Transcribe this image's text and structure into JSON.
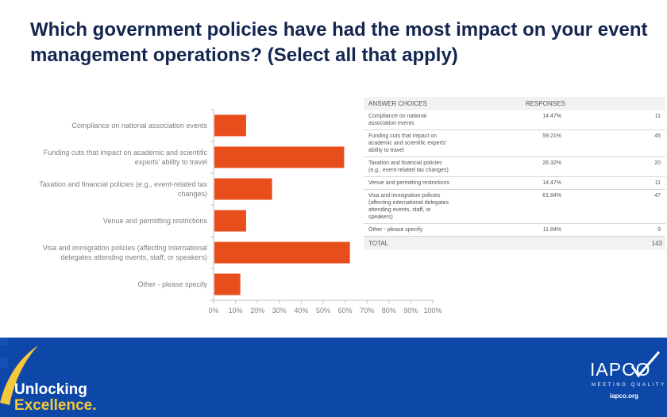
{
  "title": "Which government policies have had the most impact on your event management operations? (Select all that apply)",
  "chart_data": {
    "type": "bar",
    "orientation": "horizontal",
    "categories": [
      "Compliance on national association events",
      "Funding cuts that impact on academic and scientific experts' ability to travel",
      "Taxation and financial policies (e.g., event-related tax changes)",
      "Venue and permitting restrictions",
      "Visa and immigration policies (affecting international delegates attending events, staff, or speakers)",
      "Other - please specify"
    ],
    "category_lines": [
      [
        "Compliance on national association events"
      ],
      [
        "Funding cuts that impact on academic and scientific",
        "experts’ ability to travel"
      ],
      [
        "Taxation and financial policies (e.g., event-related tax",
        "changes)"
      ],
      [
        "Venue and permitting restrictions"
      ],
      [
        "Visa and immigration policies (affecting international",
        "delegates attending events, staff, or speakers)"
      ],
      [
        "Other - please specify"
      ]
    ],
    "values": [
      14.47,
      59.21,
      26.32,
      14.47,
      61.84,
      11.84
    ],
    "xlim": [
      0,
      100
    ],
    "xticks": [
      "0%",
      "10%",
      "20%",
      "30%",
      "40%",
      "50%",
      "60%",
      "70%",
      "80%",
      "90%",
      "100%"
    ],
    "bar_color": "#e84e1b",
    "grid": false
  },
  "table": {
    "headers": [
      "ANSWER CHOICES",
      "RESPONSES"
    ],
    "rows": [
      {
        "lines": [
          "Compliance on national",
          "association events"
        ],
        "pct": "14.47%",
        "count": "11"
      },
      {
        "lines": [
          "Funding cuts that impact on",
          "academic and scientific experts'",
          "ability to travel"
        ],
        "pct": "59.21%",
        "count": "45"
      },
      {
        "lines": [
          "Taxation and financial policies",
          "(e.g., event-related tax changes)"
        ],
        "pct": "26.32%",
        "count": "20"
      },
      {
        "lines": [
          "Venue and permitting restrictions"
        ],
        "pct": "14.47%",
        "count": "11"
      },
      {
        "lines": [
          "Visa and immigration policies",
          "(affecting international delegates",
          "attending events, staff, or",
          "speakers)"
        ],
        "pct": "61.84%",
        "count": "47"
      },
      {
        "lines": [
          "Other - please specify"
        ],
        "pct": "11.84%",
        "count": "9"
      }
    ],
    "total_label": "TOTAL",
    "total_value": "143"
  },
  "footer": {
    "tagline_line1": "Unlocking",
    "tagline_line2": "Excellence.",
    "logo_text": "IAPCO",
    "logo_subtitle": "MEETING QUALITY",
    "logo_url": "iapco.org",
    "colors": {
      "background": "#0d47a8",
      "accent": "#f6c83b",
      "title": "#13264f"
    }
  }
}
